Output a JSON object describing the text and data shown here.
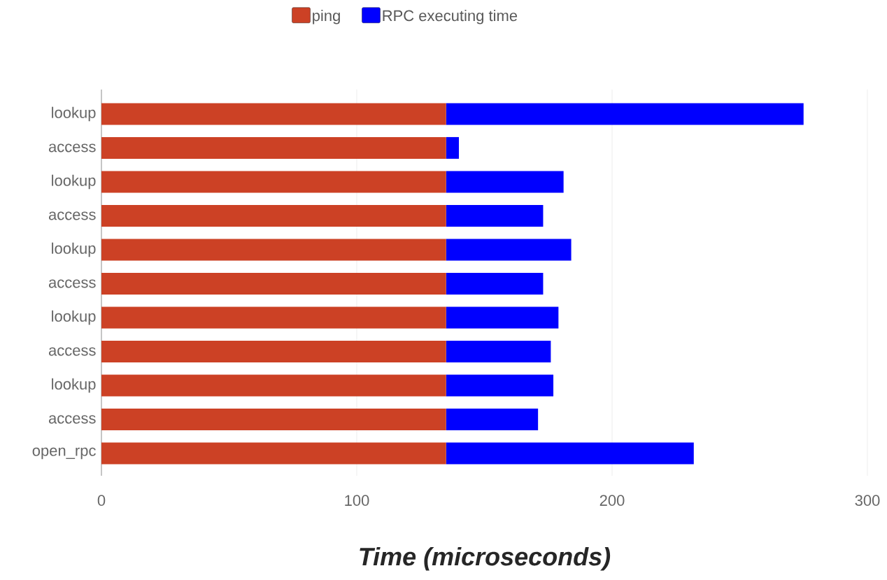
{
  "chart_data": {
    "type": "bar",
    "orientation": "horizontal",
    "stacked": true,
    "categories": [
      "lookup",
      "access",
      "lookup",
      "access",
      "lookup",
      "access",
      "lookup",
      "access",
      "lookup",
      "access",
      "open_rpc"
    ],
    "series": [
      {
        "name": "ping",
        "color": "#cc4125",
        "values": [
          135,
          135,
          135,
          135,
          135,
          135,
          135,
          135,
          135,
          135,
          135
        ]
      },
      {
        "name": "RPC executing time",
        "color": "#0000ff",
        "values": [
          140,
          5,
          46,
          38,
          49,
          38,
          44,
          41,
          42,
          36,
          97
        ]
      }
    ],
    "xlabel": "Time (microseconds)",
    "xlim": [
      0,
      300
    ],
    "xticks": [
      0,
      100,
      200,
      300
    ],
    "grid": "x",
    "legend": "top"
  }
}
